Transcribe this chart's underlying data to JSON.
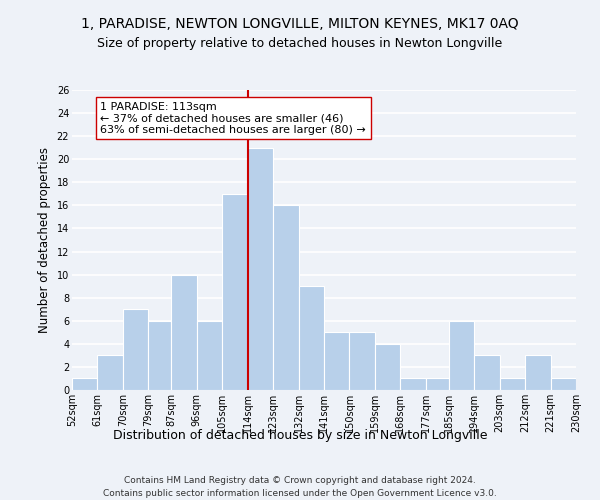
{
  "title": "1, PARADISE, NEWTON LONGVILLE, MILTON KEYNES, MK17 0AQ",
  "subtitle": "Size of property relative to detached houses in Newton Longville",
  "xlabel": "Distribution of detached houses by size in Newton Longville",
  "ylabel": "Number of detached properties",
  "bar_labels": [
    "52sqm",
    "61sqm",
    "70sqm",
    "79sqm",
    "87sqm",
    "96sqm",
    "105sqm",
    "114sqm",
    "123sqm",
    "132sqm",
    "141sqm",
    "150sqm",
    "159sqm",
    "168sqm",
    "177sqm",
    "185sqm",
    "194sqm",
    "203sqm",
    "212sqm",
    "221sqm",
    "230sqm"
  ],
  "bar_values": [
    1,
    3,
    7,
    6,
    10,
    6,
    17,
    21,
    16,
    9,
    5,
    5,
    4,
    1,
    1,
    6,
    3,
    1,
    3,
    1
  ],
  "bar_edges": [
    52,
    61,
    70,
    79,
    87,
    96,
    105,
    114,
    123,
    132,
    141,
    150,
    159,
    168,
    177,
    185,
    194,
    203,
    212,
    221,
    230
  ],
  "bar_color": "#b8d0ea",
  "bar_edge_color": "#ffffff",
  "property_line_x": 114,
  "property_line_color": "#cc0000",
  "annotation_title": "1 PARADISE: 113sqm",
  "annotation_line1": "← 37% of detached houses are smaller (46)",
  "annotation_line2": "63% of semi-detached houses are larger (80) →",
  "annotation_box_color": "#ffffff",
  "annotation_box_edge": "#cc0000",
  "ylim": [
    0,
    26
  ],
  "yticks": [
    0,
    2,
    4,
    6,
    8,
    10,
    12,
    14,
    16,
    18,
    20,
    22,
    24,
    26
  ],
  "background_color": "#eef2f8",
  "grid_color": "#ffffff",
  "footer_line1": "Contains HM Land Registry data © Crown copyright and database right 2024.",
  "footer_line2": "Contains public sector information licensed under the Open Government Licence v3.0.",
  "title_fontsize": 10,
  "subtitle_fontsize": 9,
  "xlabel_fontsize": 9,
  "ylabel_fontsize": 8.5,
  "tick_fontsize": 7,
  "footer_fontsize": 6.5,
  "ann_fontsize": 8
}
